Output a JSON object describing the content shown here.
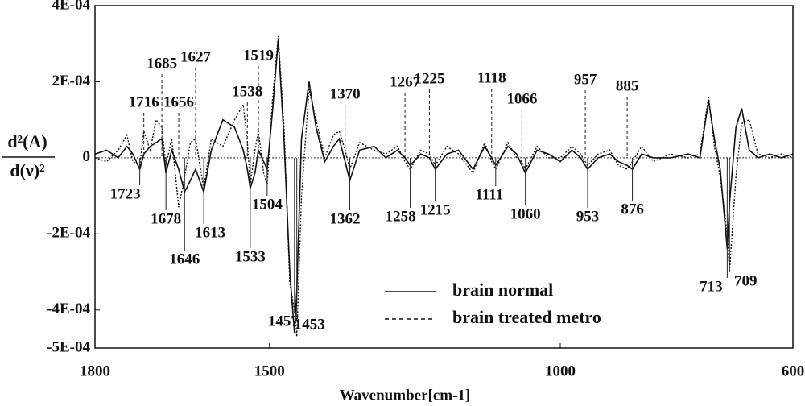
{
  "chart_data": {
    "type": "line",
    "x_label": "Wavenumber[cm-1]",
    "y_label": {
      "numerator": "d²(A)",
      "denominator": "d(ν)²"
    },
    "xlim": [
      1800,
      600
    ],
    "xticks": [
      1800,
      1500,
      1000,
      600
    ],
    "ylim": [
      -0.0005,
      0.0004
    ],
    "yticks": [
      {
        "value": 0.0004,
        "label": "4E-04"
      },
      {
        "value": 0.0002,
        "label": "2E-04"
      },
      0,
      {
        "value": -0.0002,
        "label": "-2E-04"
      },
      {
        "value": -0.0004,
        "label": "-4E-04"
      },
      {
        "value": -0.0005,
        "label": "-5E-04"
      }
    ],
    "zero_line": true,
    "legend": "lower right",
    "x": [
      1800,
      1780,
      1760,
      1745,
      1735,
      1723,
      1716,
      1705,
      1695,
      1685,
      1678,
      1668,
      1656,
      1646,
      1636,
      1627,
      1613,
      1600,
      1580,
      1560,
      1545,
      1538,
      1533,
      1525,
      1519,
      1510,
      1504,
      1495,
      1485,
      1475,
      1465,
      1457,
      1453,
      1445,
      1432,
      1420,
      1405,
      1390,
      1380,
      1370,
      1362,
      1345,
      1320,
      1300,
      1280,
      1267,
      1258,
      1240,
      1225,
      1215,
      1195,
      1175,
      1150,
      1130,
      1118,
      1111,
      1090,
      1075,
      1066,
      1060,
      1040,
      1020,
      1000,
      980,
      965,
      957,
      953,
      935,
      915,
      900,
      885,
      876,
      860,
      840,
      810,
      780,
      760,
      745,
      735,
      725,
      713,
      709,
      698,
      688,
      675,
      660,
      640,
      620,
      600
    ],
    "series": [
      {
        "name": "brain normal",
        "color": "#111111",
        "style": "solid",
        "values": [
          1e-05,
          2e-05,
          0,
          3e-05,
          1e-05,
          -3e-05,
          1e-05,
          3e-05,
          4e-05,
          5e-05,
          -4e-05,
          2e-05,
          -3e-05,
          -9e-05,
          -6e-05,
          -3e-05,
          -9e-05,
          2e-05,
          0.0001,
          8e-05,
          2e-05,
          -3e-05,
          -8e-05,
          -4e-05,
          2e-05,
          -1e-05,
          -3e-05,
          0.00012,
          0.00031,
          5e-05,
          -0.0003,
          -0.00046,
          -0.00035,
          5e-05,
          0.0002,
          8e-05,
          -1e-05,
          3e-05,
          5e-05,
          -1e-05,
          -6e-05,
          2e-05,
          3e-05,
          0,
          2e-05,
          0,
          -2e-05,
          1e-05,
          0,
          -3e-05,
          1e-05,
          2e-05,
          -3e-05,
          3e-05,
          0,
          -2e-05,
          3e-05,
          1e-05,
          -2e-05,
          -4e-05,
          2e-05,
          1e-05,
          -1e-05,
          2e-05,
          0,
          -2e-05,
          -3e-05,
          0,
          1e-05,
          -1e-05,
          -2e-05,
          -3e-05,
          1e-05,
          0,
          0,
          1e-05,
          0,
          0.00015,
          5e-05,
          -3e-05,
          -0.00024,
          -0.00012,
          8e-05,
          0.00013,
          2e-05,
          0,
          1e-05,
          0,
          1e-05
        ]
      },
      {
        "name": "brain treated metro",
        "color": "#111111",
        "style": "dotted",
        "values": [
          0,
          -1e-05,
          2e-05,
          6e-05,
          -1e-05,
          -2e-05,
          7e-05,
          2e-05,
          0.0001,
          8e-05,
          -2e-05,
          5e-05,
          -0.00013,
          -5e-05,
          4e-05,
          5e-05,
          -8e-05,
          5e-05,
          3e-05,
          0.0001,
          0.00014,
          4e-05,
          -7e-05,
          2e-05,
          7e-05,
          -4e-05,
          -7e-05,
          0.00015,
          0.00032,
          8e-05,
          -0.00033,
          -0.0004,
          -0.00047,
          -0.0001,
          0.00018,
          0.0001,
          0,
          6e-05,
          7e-05,
          2e-05,
          -3e-05,
          4e-05,
          2e-05,
          1e-05,
          3e-05,
          -1e-05,
          -3e-05,
          2e-05,
          1e-05,
          -2e-05,
          3e-05,
          1e-05,
          -4e-05,
          4e-05,
          -1e-05,
          -3e-05,
          4e-05,
          0,
          -1e-05,
          -3e-05,
          3e-05,
          0,
          0,
          3e-05,
          1e-05,
          -1e-05,
          -2e-05,
          1e-05,
          2e-05,
          -2e-05,
          -3e-05,
          -1e-05,
          3e-05,
          -1e-05,
          1e-05,
          0,
          1e-05,
          0.00016,
          3e-05,
          -5e-05,
          -0.0002,
          -0.0003,
          -5e-05,
          9e-05,
          0.0001,
          1e-05,
          0,
          1e-05,
          0
        ]
      }
    ],
    "peak_labels": {
      "top": [
        1716,
        1685,
        1656,
        1627,
        1538,
        1519,
        1370,
        1267,
        1225,
        1118,
        1066,
        957,
        885
      ],
      "bottom": [
        1723,
        1678,
        1646,
        1613,
        1533,
        1504,
        1362,
        1258,
        1215,
        1111,
        1060,
        953,
        876,
        1457,
        1453,
        713,
        709
      ]
    }
  }
}
